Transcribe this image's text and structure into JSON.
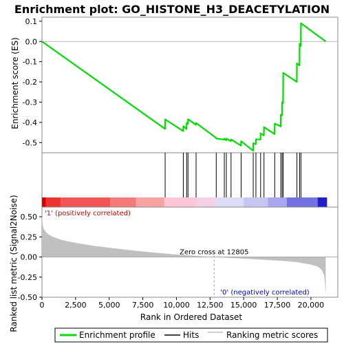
{
  "chart_data": {
    "type": "line",
    "title": "Enrichment plot: GO_HISTONE_H3_DEACETYLATION",
    "es_panel": {
      "ylabel": "Enrichment score (ES)",
      "ylim": [
        -0.55,
        0.12
      ],
      "yticks": [
        {
          "value": 0.1,
          "label": "0.1"
        },
        {
          "value": 0.0,
          "label": "0.0"
        },
        {
          "value": -0.1,
          "label": "-0.1"
        },
        {
          "value": -0.2,
          "label": "-0.2"
        },
        {
          "value": -0.3,
          "label": "-0.3"
        },
        {
          "value": -0.4,
          "label": "-0.4"
        },
        {
          "value": -0.5,
          "label": "-0.5"
        }
      ],
      "series_color": "#00dd00",
      "enrichment_profile": {
        "x": [
          0,
          9150,
          9160,
          10500,
          10510,
          10750,
          10760,
          10850,
          10860,
          11450,
          11460,
          12950,
          12960,
          13550,
          13560,
          13700,
          13710,
          14050,
          14060,
          14800,
          14810,
          15700,
          15710,
          15900,
          15910,
          16250,
          16260,
          16500,
          16510,
          17300,
          17310,
          17750,
          17760,
          17850,
          17860,
          17930,
          17940,
          18950,
          18960,
          19150,
          19160,
          19250,
          19260,
          21100
        ],
        "y": [
          0.0,
          -0.432,
          -0.385,
          -0.443,
          -0.418,
          -0.433,
          -0.403,
          -0.408,
          -0.384,
          -0.412,
          -0.403,
          -0.477,
          -0.48,
          -0.485,
          -0.48,
          -0.488,
          -0.48,
          -0.493,
          -0.484,
          -0.515,
          -0.493,
          -0.54,
          -0.503,
          -0.508,
          -0.483,
          -0.485,
          -0.454,
          -0.465,
          -0.423,
          -0.458,
          -0.406,
          -0.42,
          -0.362,
          -0.365,
          -0.3,
          -0.305,
          -0.155,
          -0.2,
          -0.108,
          -0.118,
          -0.012,
          -0.022,
          0.09,
          0.0
        ]
      }
    },
    "hits_panel": {
      "hit_positions": [
        9160,
        10510,
        10760,
        10860,
        11460,
        12960,
        13560,
        13710,
        14060,
        14810,
        15710,
        15910,
        16260,
        16510,
        17310,
        17760,
        17860,
        17940,
        18960,
        19160,
        19260
      ],
      "color_bar": {
        "bands": [
          {
            "x0": 0,
            "x1": 300,
            "color": "#dd0000"
          },
          {
            "x0": 300,
            "x1": 1400,
            "color": "#ee3333"
          },
          {
            "x0": 1400,
            "x1": 5100,
            "color": "#f25555"
          },
          {
            "x0": 5100,
            "x1": 7000,
            "color": "#f47a7a"
          },
          {
            "x0": 7000,
            "x1": 9100,
            "color": "#f8a2a2"
          },
          {
            "x0": 9100,
            "x1": 11500,
            "color": "#fbc6d8"
          },
          {
            "x0": 11500,
            "x1": 12900,
            "color": "#f4d0e8"
          },
          {
            "x0": 12900,
            "x1": 15000,
            "color": "#dcdcf4"
          },
          {
            "x0": 15000,
            "x1": 16800,
            "color": "#c6c6f2"
          },
          {
            "x0": 16800,
            "x1": 18200,
            "color": "#a8a8ee"
          },
          {
            "x0": 18200,
            "x1": 20500,
            "color": "#7272e0"
          },
          {
            "x0": 20500,
            "x1": 21200,
            "color": "#2020c8"
          }
        ]
      }
    },
    "metric_panel": {
      "ylabel": "Ranked list metric (Signal2Noise)",
      "xlabel": "Rank in Ordered Dataset",
      "ylim": [
        -0.5,
        0.62
      ],
      "yticks": [
        {
          "value": 0.5,
          "label": "0.50"
        },
        {
          "value": 0.25,
          "label": "0.25"
        },
        {
          "value": 0.0,
          "label": "0.00"
        },
        {
          "value": -0.25,
          "label": "-0.25"
        },
        {
          "value": -0.5,
          "label": "-0.50"
        }
      ],
      "xlim": [
        0,
        22000
      ],
      "xticks": [
        {
          "value": 0,
          "label": "0"
        },
        {
          "value": 2500,
          "label": "2,500"
        },
        {
          "value": 5000,
          "label": "5,000"
        },
        {
          "value": 7500,
          "label": "7,500"
        },
        {
          "value": 10000,
          "label": "10,000"
        },
        {
          "value": 12500,
          "label": "12,500"
        },
        {
          "value": 15000,
          "label": "15,000"
        },
        {
          "value": 17500,
          "label": "17,500"
        },
        {
          "value": 20000,
          "label": "20,000"
        }
      ],
      "ranked_metric": {
        "x": [
          0,
          50,
          150,
          400,
          800,
          1500,
          2500,
          4000,
          6000,
          8000,
          10000,
          12000,
          12805,
          14000,
          16000,
          18000,
          19000,
          20000,
          20500,
          20800,
          21000,
          21100
        ],
        "y": [
          0.5,
          0.4,
          0.34,
          0.29,
          0.25,
          0.21,
          0.175,
          0.135,
          0.095,
          0.06,
          0.03,
          0.008,
          0.0,
          -0.012,
          -0.03,
          -0.05,
          -0.065,
          -0.095,
          -0.12,
          -0.16,
          -0.24,
          -0.47
        ]
      },
      "fill_color": "#c0c0c0",
      "zero_cross_label": "Zero cross at 12805",
      "zero_cross_value": 12805,
      "positive_label": "'1' (positively correlated)",
      "negative_label": "'0' (negatively correlated)"
    },
    "legend": {
      "placement": "bottom",
      "entries": [
        {
          "label": "Enrichment profile",
          "color": "#00dd00"
        },
        {
          "label": "Hits",
          "color": "#000000"
        },
        {
          "label": "Ranking metric scores",
          "color": "#c0c0c0"
        }
      ]
    }
  }
}
